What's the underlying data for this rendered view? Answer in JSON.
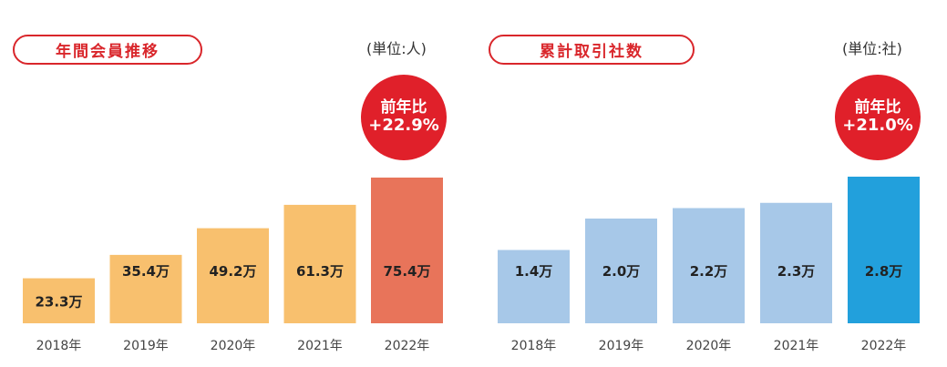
{
  "chart_data": [
    {
      "type": "bar",
      "title": "年間会員推移",
      "unit_note": "(単位:人)",
      "categories": [
        "2018年",
        "2019年",
        "2020年",
        "2021年",
        "2022年"
      ],
      "values": [
        23.3,
        35.4,
        49.2,
        61.3,
        75.4
      ],
      "value_labels": [
        "23.3万",
        "35.4万",
        "49.2万",
        "61.3万",
        "75.4万"
      ],
      "bar_colors": [
        "#f8c06e",
        "#f8c06e",
        "#f8c06e",
        "#f8c06e",
        "#e8745a"
      ],
      "title_color": "#d9262b",
      "badge": {
        "line1": "前年比",
        "line2": "+22.9%",
        "color": "#e0202a"
      },
      "grid": false
    },
    {
      "type": "bar",
      "title": "累計取引社数",
      "unit_note": "(単位:社)",
      "categories": [
        "2018年",
        "2019年",
        "2020年",
        "2021年",
        "2022年"
      ],
      "values": [
        1.4,
        2.0,
        2.2,
        2.3,
        2.8
      ],
      "value_labels": [
        "1.4万",
        "2.0万",
        "2.2万",
        "2.3万",
        "2.8万"
      ],
      "bar_colors": [
        "#a7c8e8",
        "#a7c8e8",
        "#a7c8e8",
        "#a7c8e8",
        "#22a0dc"
      ],
      "title_color": "#d9262b",
      "badge": {
        "line1": "前年比",
        "line2": "+21.0%",
        "color": "#e0202a"
      },
      "grid": false
    }
  ]
}
